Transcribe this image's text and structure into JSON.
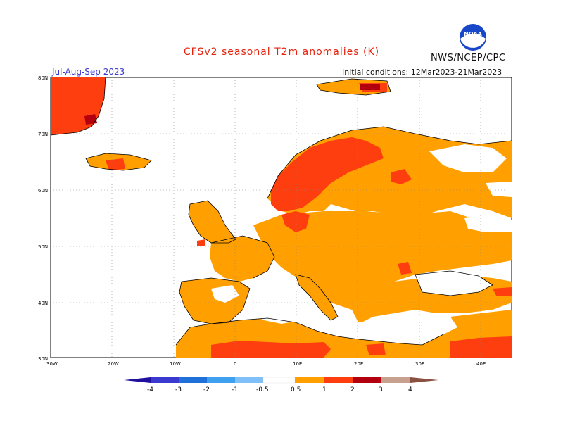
{
  "header": {
    "title": "CFSv2 seasonal T2m anomalies (K)",
    "agency": "NWS/NCEP/CPC",
    "logo_text": "NOAA",
    "season": "Jul-Aug-Sep 2023",
    "initial_conditions": "Initial conditions: 12Mar2023-21Mar2023"
  },
  "map": {
    "lat_labels": [
      "80N",
      "70N",
      "60N",
      "50N",
      "40N",
      "30N"
    ],
    "lon_labels": [
      "30W",
      "20W",
      "10W",
      "0",
      "10E",
      "20E",
      "30E",
      "40E"
    ],
    "lon_range": [
      -30,
      45
    ],
    "lat_range": [
      30,
      80
    ],
    "gridlines": true,
    "colors": {
      "anom_0_5_1": "#ff9f00",
      "anom_1_2": "#ff3e10",
      "anom_2_3": "#b2000f",
      "anom_3_4": "#c8a090",
      "coast": "#000000"
    }
  },
  "colorbar": {
    "labels": [
      "-4",
      "-3",
      "-2",
      "-1",
      "-0.5",
      "0.5",
      "1",
      "2",
      "3",
      "4"
    ],
    "colors": [
      "#2010a0",
      "#3a3ad0",
      "#1f70d8",
      "#3fa0f0",
      "#80c0f8",
      "#ffffff",
      "#ff9f00",
      "#ff3e10",
      "#b2000f",
      "#c8a090",
      "#8a5040"
    ]
  }
}
